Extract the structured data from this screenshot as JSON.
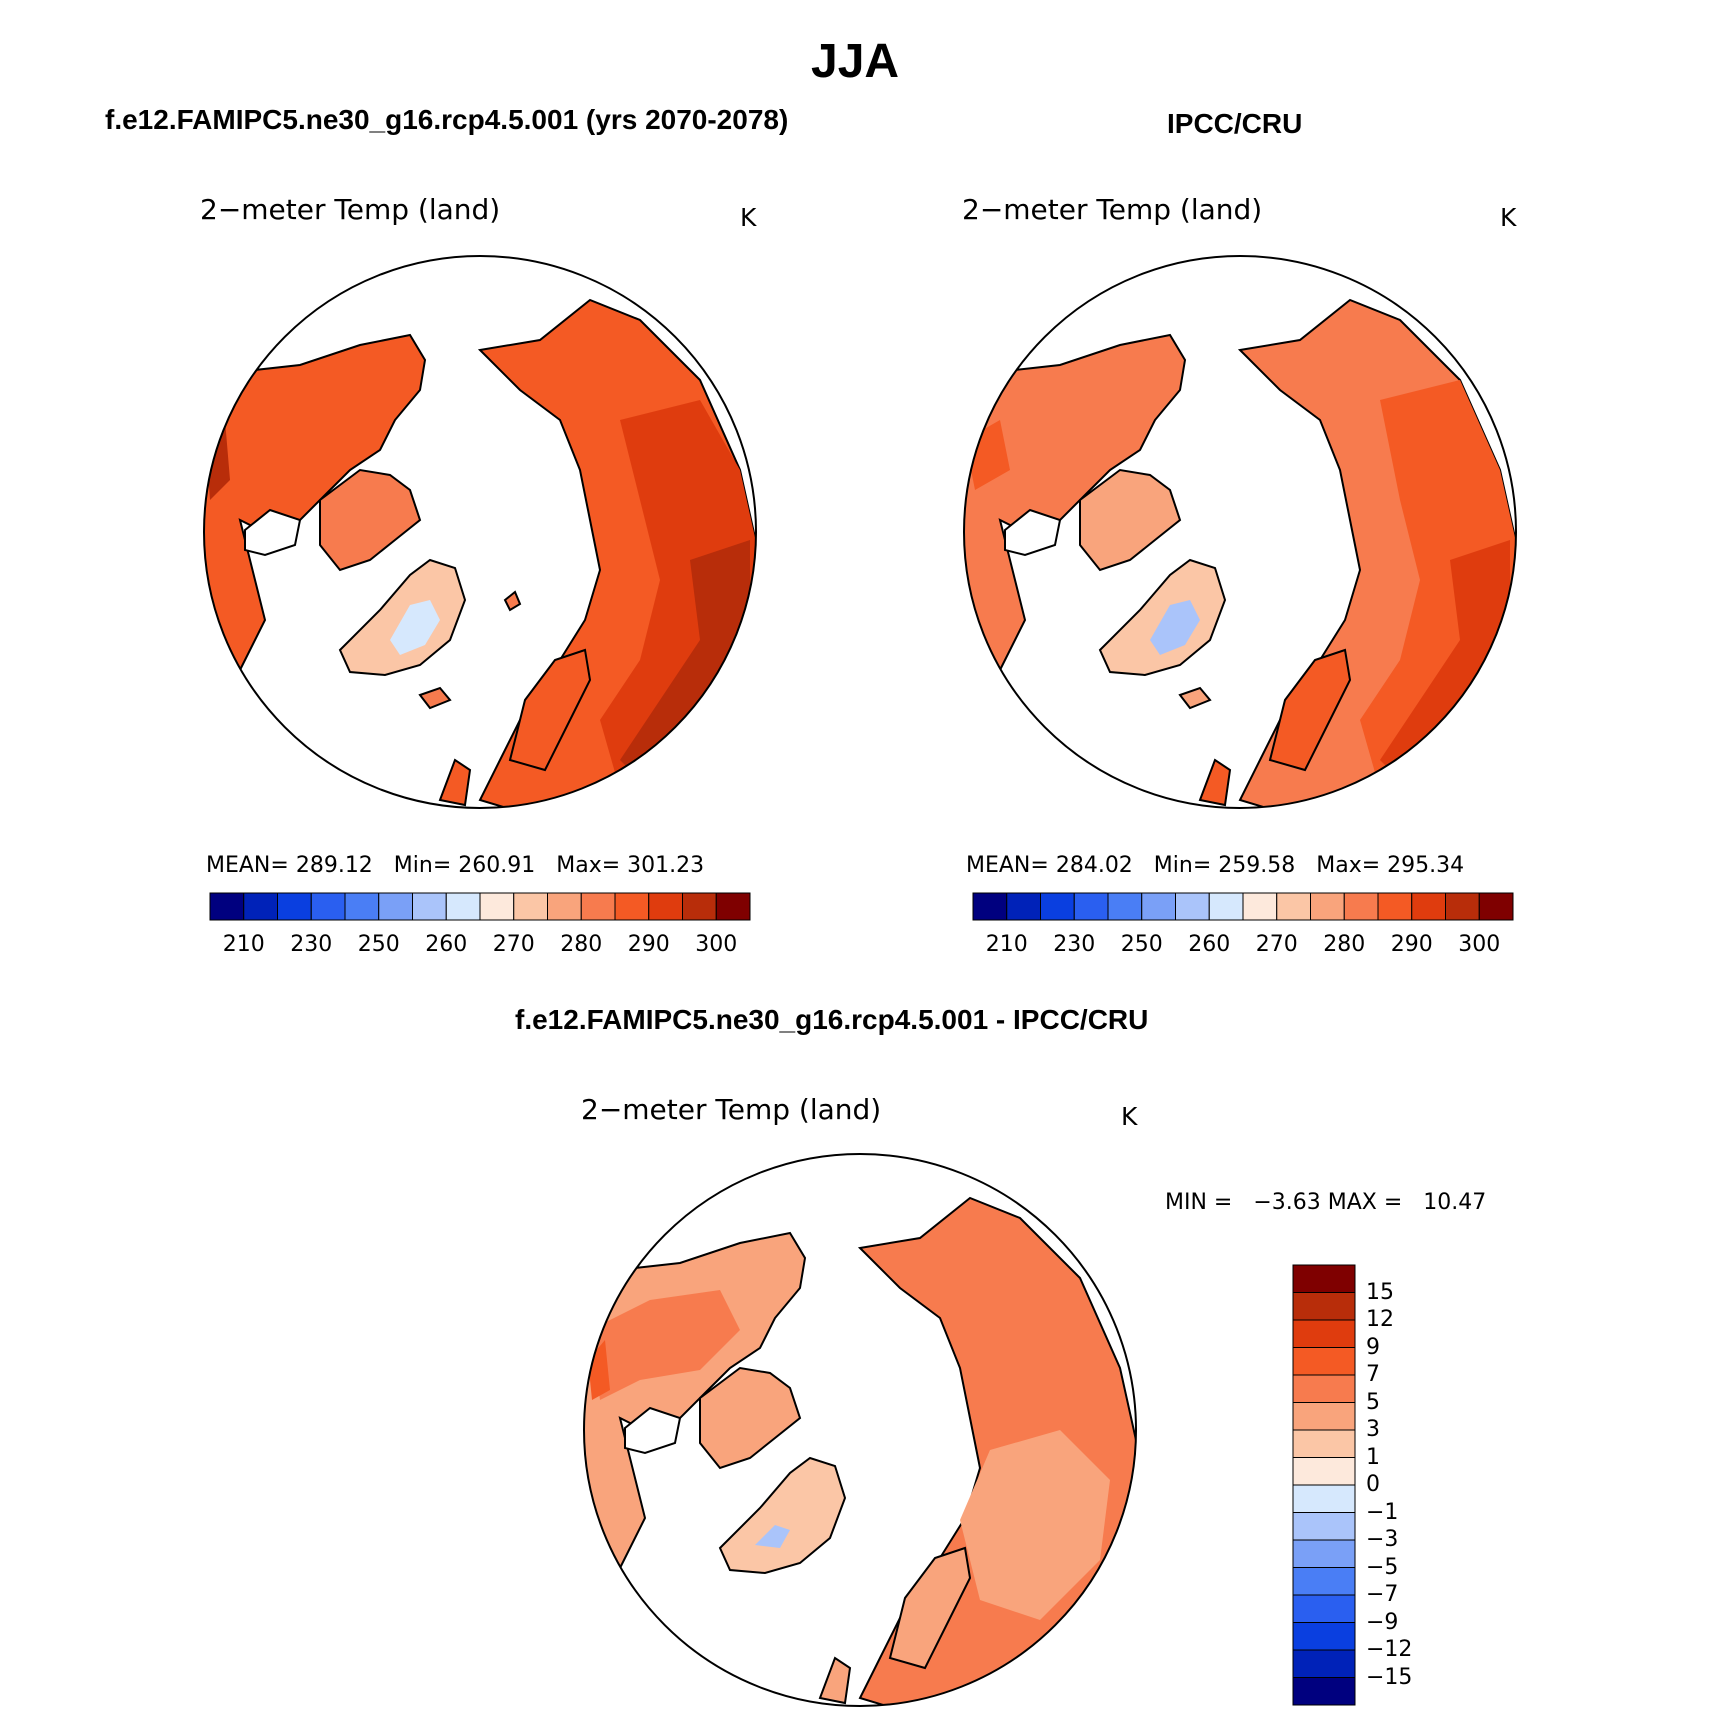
{
  "main_title": "JJA",
  "panel_left": {
    "case_title": "f.e12.FAMIPC5.ne30_g16.rcp4.5.001 (yrs 2070-2078)",
    "var_title": "2−meter Temp (land)",
    "units": "K",
    "stats": {
      "mean_label": "MEAN=",
      "mean": "289.12",
      "min_label": "Min=",
      "min": "260.91",
      "max_label": "Max=",
      "max": "301.23"
    }
  },
  "panel_right": {
    "case_title": "IPCC/CRU",
    "var_title": "2−meter Temp (land)",
    "units": "K",
    "stats": {
      "mean_label": "MEAN=",
      "mean": "284.02",
      "min_label": "Min=",
      "min": "259.58",
      "max_label": "Max=",
      "max": "295.34"
    }
  },
  "panel_diff": {
    "case_title": "f.e12.FAMIPC5.ne30_g16.rcp4.5.001 - IPCC/CRU",
    "var_title": "2−meter Temp (land)",
    "units": "K",
    "min_label": "MIN =",
    "min": "−3.63",
    "max_label": "MAX =",
    "max": "10.47"
  },
  "abs_colorbar": {
    "colors": [
      "#00007f",
      "#0022b8",
      "#0a3fe0",
      "#2a5ff0",
      "#4a7ef5",
      "#7aa0f7",
      "#aac4fa",
      "#d6e8fd",
      "#fde9dc",
      "#fbc6a6",
      "#f9a47c",
      "#f77b4e",
      "#f45a24",
      "#df3c0e",
      "#b82d0a",
      "#7f0000"
    ],
    "tick_labels": [
      "210",
      "230",
      "250",
      "260",
      "270",
      "280",
      "290",
      "300"
    ]
  },
  "diff_colorbar": {
    "colors_top_to_bottom": [
      "#7f0000",
      "#b82d0a",
      "#df3c0e",
      "#f45a24",
      "#f77b4e",
      "#f9a47c",
      "#fbc6a6",
      "#fde9dc",
      "#d6e8fd",
      "#aac4fa",
      "#7aa0f7",
      "#4a7ef5",
      "#2a5ff0",
      "#0a3fe0",
      "#0022b8",
      "#00007f"
    ],
    "tick_labels": [
      "15",
      "12",
      "9",
      "7",
      "5",
      "3",
      "1",
      "0",
      "−1",
      "−3",
      "−5",
      "−7",
      "−9",
      "−12",
      "−15"
    ]
  },
  "chart_data": {
    "type": "heatmap",
    "title": "JJA",
    "variable": "2−meter Temp (land)",
    "units": "K",
    "projection": "north polar stereographic",
    "panels": [
      {
        "name": "f.e12.FAMIPC5.ne30_g16.rcp4.5.001 (yrs 2070-2078)",
        "mean": 289.12,
        "min": 260.91,
        "max": 301.23
      },
      {
        "name": "IPCC/CRU",
        "mean": 284.02,
        "min": 259.58,
        "max": 295.34
      },
      {
        "name": "f.e12.FAMIPC5.ne30_g16.rcp4.5.001 - IPCC/CRU",
        "min": -3.63,
        "max": 10.47
      }
    ]
  }
}
